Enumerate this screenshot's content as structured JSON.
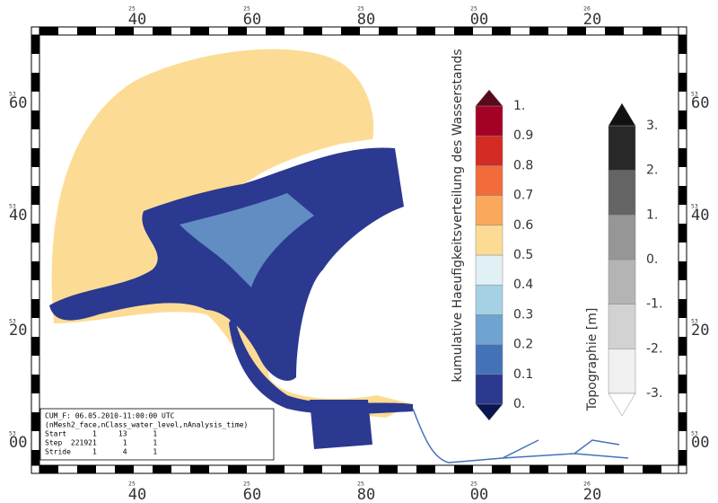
{
  "frame": {
    "top": [
      {
        "minor": "25",
        "major": "40"
      },
      {
        "minor": "25",
        "major": "60"
      },
      {
        "minor": "25",
        "major": "80"
      },
      {
        "minor": "25",
        "major": "00"
      },
      {
        "minor": "26",
        "major": "20"
      }
    ],
    "side": [
      {
        "minor": "53",
        "major": "60"
      },
      {
        "minor": "53",
        "major": "40"
      },
      {
        "minor": "53",
        "major": "20"
      },
      {
        "minor": "53",
        "major": "00"
      }
    ]
  },
  "colorbar_frequency": {
    "title": "kumulative Haeufigkeitsverteilung des Wasserstands",
    "labels": [
      "0.",
      "0.1",
      "0.2",
      "0.3",
      "0.4",
      "0.5",
      "0.6",
      "0.7",
      "0.8",
      "0.9",
      "1."
    ],
    "colors": [
      "#2b3990",
      "#4472b8",
      "#6fa3d0",
      "#a6d1e5",
      "#e0f0f5",
      "#fcdc94",
      "#f9a85c",
      "#f26b3a",
      "#d42b25",
      "#a50026"
    ],
    "under_color": "#0a1650",
    "over_color": "#5a0a1a"
  },
  "colorbar_topography": {
    "title": "Topographie [m]",
    "labels": [
      "-3.",
      "-2.",
      "-1.",
      "0.",
      "1.",
      "2.",
      "3."
    ],
    "colors": [
      "#f0f0f0",
      "#d2d2d2",
      "#b4b4b4",
      "#969696",
      "#646464",
      "#282828"
    ],
    "under_color": "#ffffff",
    "over_color": "#111111"
  },
  "info_box": {
    "lines": [
      "CUM_F: 06.05.2010-11:00:00 UTC",
      "(nMesh2_face,nClass_water_level,nAnalysis_time)",
      "Start      1     13      1",
      "Step  221921      1      1",
      "Stride     1      4      1"
    ]
  }
}
